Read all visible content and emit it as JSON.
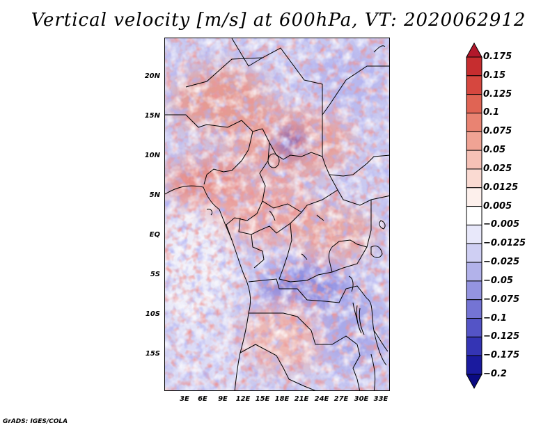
{
  "title": "Vertical velocity [m/s] at 600hPa, VT: 2020062912",
  "footer": "GrADS: IGES/COLA",
  "lat_labels": [
    "20N",
    "15N",
    "10N",
    "5N",
    "EQ",
    "5S",
    "10S",
    "15S"
  ],
  "lon_labels": [
    "3E",
    "6E",
    "9E",
    "12E",
    "15E",
    "18E",
    "21E",
    "24E",
    "27E",
    "30E",
    "33E"
  ],
  "colorbar": {
    "labels": [
      "0.175",
      "0.15",
      "0.125",
      "0.1",
      "0.075",
      "0.05",
      "0.025",
      "0.0125",
      "0.005",
      "−0.005",
      "−0.0125",
      "−0.025",
      "−0.05",
      "−0.075",
      "−0.1",
      "−0.125",
      "−0.175",
      "−0.2"
    ],
    "colors": [
      "#b2182b",
      "#c62d2f",
      "#d6473f",
      "#e06454",
      "#e98372",
      "#f0a394",
      "#f6c1b6",
      "#fadad2",
      "#fdf0ec",
      "#ffffff",
      "#e8e8fa",
      "#cfcff3",
      "#b2b2ea",
      "#9494e0",
      "#7474d4",
      "#5454c6",
      "#3434b4",
      "#1a1a9e",
      "#0a0a82"
    ]
  }
}
